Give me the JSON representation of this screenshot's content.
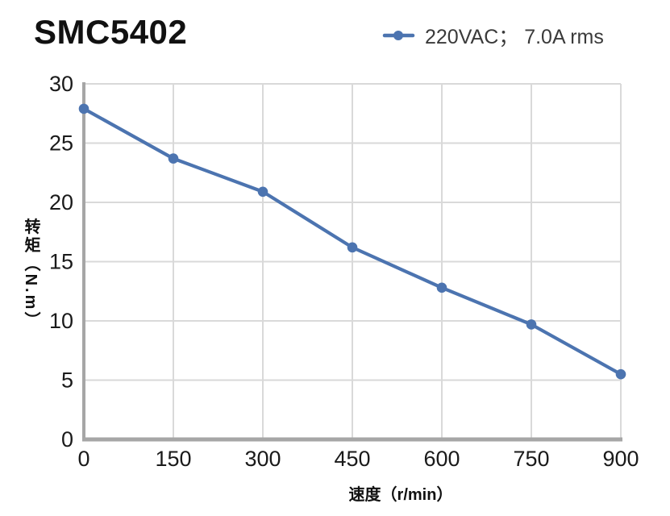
{
  "chart_data": {
    "type": "line",
    "title": "SMC5402",
    "xlabel": "速度（r/min）",
    "ylabel": "转矩（N.m）",
    "xlim": [
      0,
      900
    ],
    "ylim": [
      0,
      30
    ],
    "xticks": [
      0,
      150,
      300,
      450,
      600,
      750,
      900
    ],
    "yticks": [
      0,
      5,
      10,
      15,
      20,
      25,
      30
    ],
    "grid": true,
    "legend_position": "top-right",
    "series": [
      {
        "name": "220VAC； 7.0A rms",
        "x": [
          0,
          150,
          300,
          450,
          600,
          750,
          900
        ],
        "y": [
          27.9,
          23.7,
          20.9,
          16.2,
          12.8,
          9.7,
          5.5
        ],
        "color": "#4C74B0",
        "marker": "circle"
      }
    ],
    "colors": {
      "grid": "#D9D9D9",
      "axis": "#A6A6A6",
      "tick_label": "#1A1A1A",
      "title": "#111111",
      "legend_text": "#3A3A3A"
    }
  }
}
